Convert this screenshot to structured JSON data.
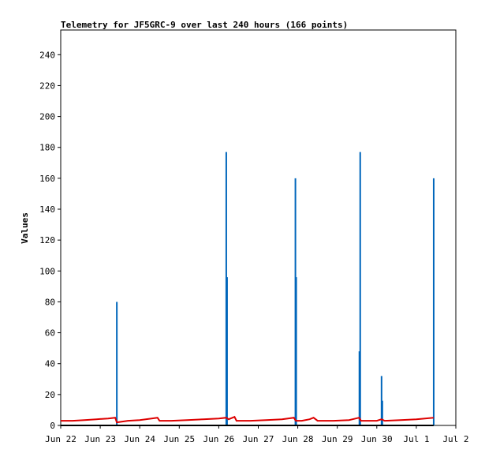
{
  "chart_data": {
    "type": "line",
    "title": "Telemetry for JF5GRC-9 over last 240 hours (166 points)",
    "xlabel": "",
    "ylabel": "Values",
    "ylim": [
      0,
      256
    ],
    "yticks": [
      0,
      20,
      40,
      60,
      80,
      100,
      120,
      140,
      160,
      180,
      200,
      220,
      240
    ],
    "xlim": [
      0,
      10
    ],
    "xticks": [
      {
        "x": 0,
        "label": "Jun 22"
      },
      {
        "x": 1,
        "label": "Jun 23"
      },
      {
        "x": 2,
        "label": "Jun 24"
      },
      {
        "x": 3,
        "label": "Jun 25"
      },
      {
        "x": 4,
        "label": "Jun 26"
      },
      {
        "x": 5,
        "label": "Jun 27"
      },
      {
        "x": 6,
        "label": "Jun 28"
      },
      {
        "x": 7,
        "label": "Jun 29"
      },
      {
        "x": 8,
        "label": "Jun 30"
      },
      {
        "x": 9,
        "label": "Jul 1"
      },
      {
        "x": 10,
        "label": "Jul 2"
      }
    ],
    "grid": false,
    "series": [
      {
        "color": "#0066bb",
        "style": "spikes",
        "points": [
          [
            1.42,
            80
          ],
          [
            4.19,
            177
          ],
          [
            4.21,
            96
          ],
          [
            5.94,
            160
          ],
          [
            5.96,
            96
          ],
          [
            7.56,
            48
          ],
          [
            7.58,
            177
          ],
          [
            8.12,
            32
          ],
          [
            8.14,
            16
          ],
          [
            9.44,
            160
          ]
        ]
      },
      {
        "color": "#dd0000",
        "style": "line",
        "points": [
          [
            0,
            3
          ],
          [
            0.3,
            3
          ],
          [
            0.6,
            3.5
          ],
          [
            0.9,
            4
          ],
          [
            1.2,
            4.5
          ],
          [
            1.38,
            5
          ],
          [
            1.42,
            2
          ],
          [
            1.7,
            3
          ],
          [
            2.0,
            3.5
          ],
          [
            2.3,
            4.5
          ],
          [
            2.45,
            5
          ],
          [
            2.5,
            3
          ],
          [
            2.8,
            3
          ],
          [
            3.2,
            3.5
          ],
          [
            3.6,
            4
          ],
          [
            4.0,
            4.5
          ],
          [
            4.19,
            5
          ],
          [
            4.25,
            4
          ],
          [
            4.4,
            5.5
          ],
          [
            4.45,
            3
          ],
          [
            4.8,
            3
          ],
          [
            5.2,
            3.5
          ],
          [
            5.6,
            4
          ],
          [
            5.9,
            5
          ],
          [
            5.95,
            3
          ],
          [
            6.1,
            3
          ],
          [
            6.3,
            4
          ],
          [
            6.4,
            5
          ],
          [
            6.5,
            3
          ],
          [
            6.9,
            3
          ],
          [
            7.3,
            3.5
          ],
          [
            7.55,
            5
          ],
          [
            7.6,
            3
          ],
          [
            8.0,
            3
          ],
          [
            8.12,
            4
          ],
          [
            8.2,
            3
          ],
          [
            8.6,
            3.5
          ],
          [
            9.0,
            4
          ],
          [
            9.44,
            5
          ]
        ]
      },
      {
        "color": "#000000",
        "style": "line",
        "points": [
          [
            0,
            0
          ],
          [
            9.44,
            0
          ]
        ]
      }
    ]
  }
}
